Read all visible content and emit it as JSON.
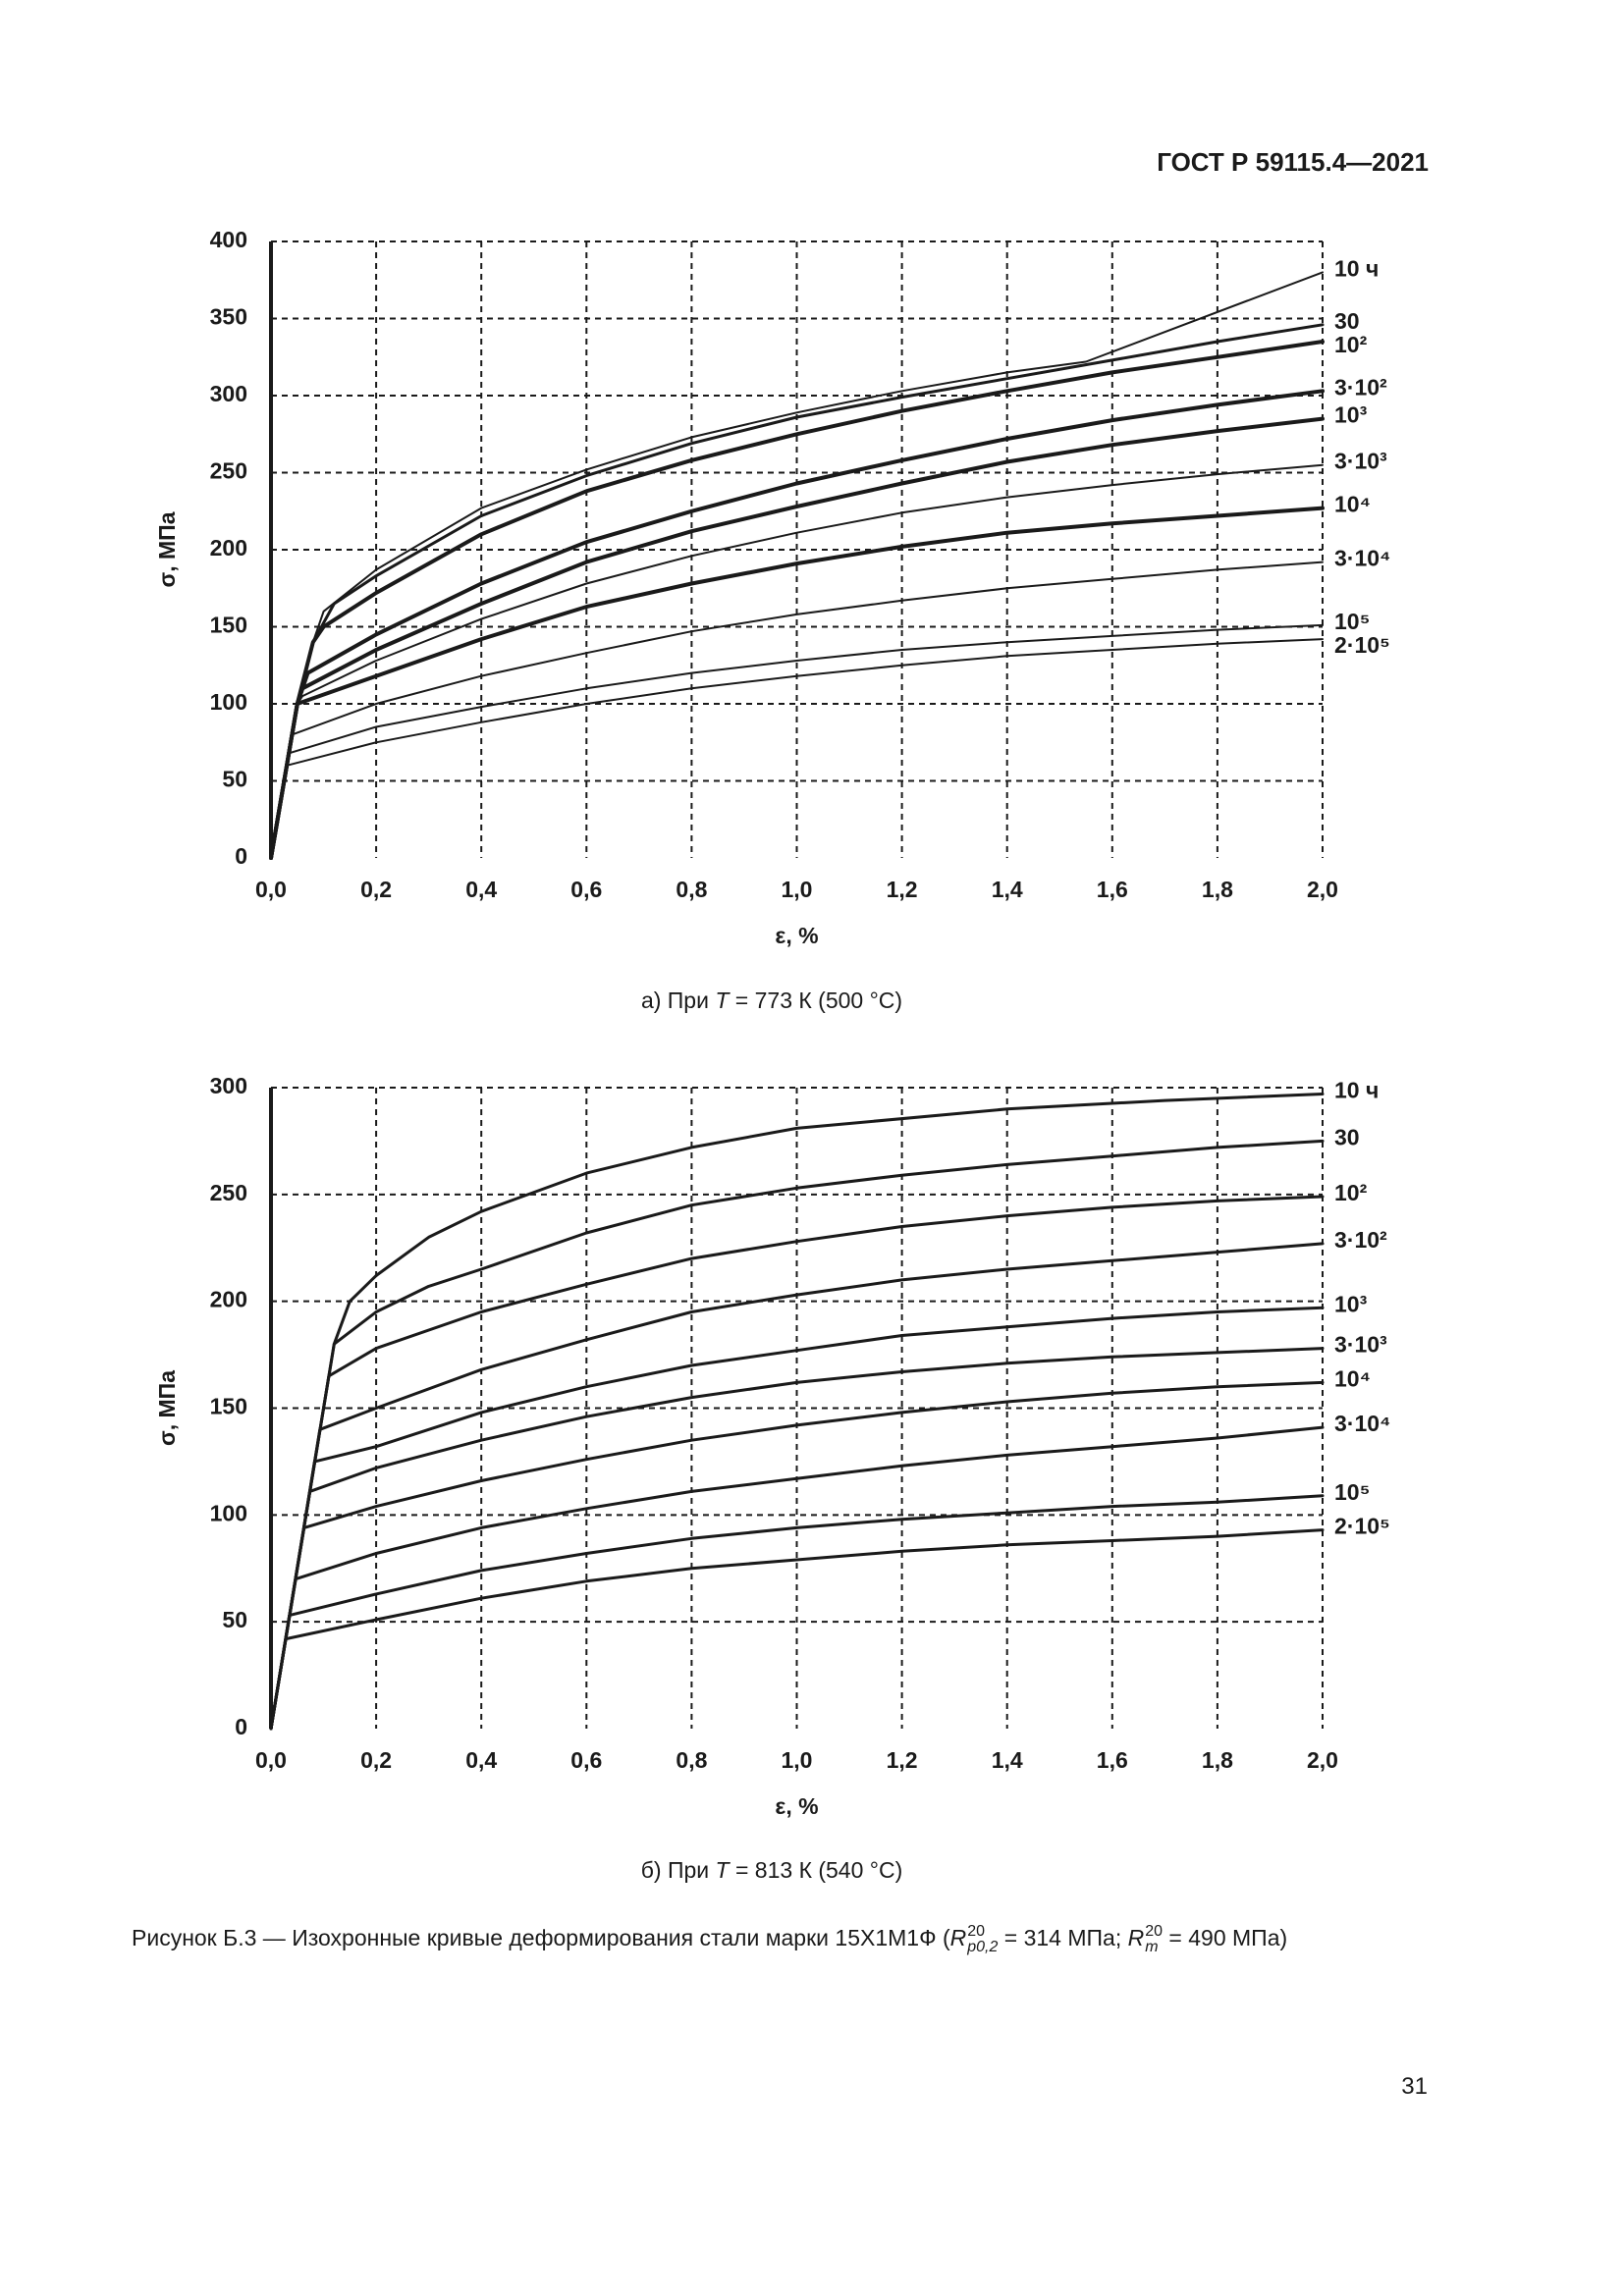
{
  "header": {
    "title": "ГОСТ Р 59115.4—2021"
  },
  "chart_data": [
    {
      "type": "line",
      "ylabel": "σ, МПа",
      "xlabel": "ε, %",
      "xlim": [
        0,
        2
      ],
      "ylim": [
        0,
        400
      ],
      "xticks": [
        {
          "value": 0,
          "label": "0,0"
        },
        {
          "value": 0.2,
          "label": "0,2"
        },
        {
          "value": 0.4,
          "label": "0,4"
        },
        {
          "value": 0.6,
          "label": "0,6"
        },
        {
          "value": 0.8,
          "label": "0,8"
        },
        {
          "value": 1,
          "label": "1,0"
        },
        {
          "value": 1.2,
          "label": "1,2"
        },
        {
          "value": 1.4,
          "label": "1,4"
        },
        {
          "value": 1.6,
          "label": "1,6"
        },
        {
          "value": 1.8,
          "label": "1,8"
        },
        {
          "value": 2,
          "label": "2,0"
        }
      ],
      "yticks": [
        0,
        50,
        100,
        150,
        200,
        250,
        300,
        350,
        400
      ],
      "grid": true,
      "series": [
        {
          "name": "10 ч",
          "color": "#1a1a1a",
          "linewidth": 2,
          "x": [
            0,
            0.05,
            0.08,
            0.1,
            0.2,
            0.4,
            0.6,
            0.8,
            1.0,
            1.2,
            1.4,
            1.55,
            2.0
          ],
          "values": [
            0,
            100,
            140,
            160,
            187,
            227,
            252,
            273,
            289,
            303,
            315,
            322,
            380
          ]
        },
        {
          "name": "30",
          "color": "#1a1a1a",
          "linewidth": 3,
          "x": [
            0,
            0.05,
            0.08,
            0.12,
            0.2,
            0.4,
            0.6,
            0.8,
            1.0,
            1.2,
            1.4,
            1.6,
            1.8,
            2.0
          ],
          "values": [
            0,
            100,
            140,
            165,
            183,
            222,
            248,
            269,
            286,
            299,
            311,
            323,
            335,
            346
          ]
        },
        {
          "name": "10²",
          "color": "#1a1a1a",
          "linewidth": 4,
          "x": [
            0,
            0.05,
            0.08,
            0.1,
            0.2,
            0.4,
            0.6,
            0.8,
            1.0,
            1.2,
            1.4,
            1.6,
            1.8,
            2.0
          ],
          "values": [
            0,
            100,
            140,
            150,
            172,
            210,
            238,
            258,
            275,
            290,
            303,
            315,
            325,
            335
          ]
        },
        {
          "name": "3·10²",
          "color": "#1a1a1a",
          "linewidth": 4,
          "x": [
            0,
            0.05,
            0.07,
            0.2,
            0.4,
            0.6,
            0.8,
            1.0,
            1.2,
            1.4,
            1.6,
            1.8,
            2.0
          ],
          "values": [
            0,
            100,
            120,
            145,
            178,
            205,
            225,
            243,
            258,
            272,
            284,
            294,
            303
          ]
        },
        {
          "name": "10³",
          "color": "#1a1a1a",
          "linewidth": 4,
          "x": [
            0,
            0.05,
            0.06,
            0.2,
            0.4,
            0.6,
            0.8,
            1.0,
            1.2,
            1.4,
            1.6,
            1.8,
            2.0
          ],
          "values": [
            0,
            100,
            110,
            135,
            165,
            192,
            212,
            228,
            243,
            257,
            268,
            277,
            285
          ]
        },
        {
          "name": "3·10³",
          "color": "#1a1a1a",
          "linewidth": 2,
          "x": [
            0,
            0.05,
            0.06,
            0.2,
            0.4,
            0.6,
            0.8,
            1.0,
            1.2,
            1.4,
            1.6,
            1.8,
            2.0
          ],
          "values": [
            0,
            100,
            105,
            128,
            155,
            178,
            196,
            211,
            224,
            234,
            242,
            249,
            255
          ]
        },
        {
          "name": "10⁴",
          "color": "#1a1a1a",
          "linewidth": 4,
          "x": [
            0,
            0.05,
            0.2,
            0.4,
            0.6,
            0.8,
            1.0,
            1.2,
            1.4,
            1.6,
            1.8,
            2.0
          ],
          "values": [
            0,
            100,
            118,
            142,
            163,
            178,
            191,
            202,
            211,
            217,
            222,
            227
          ]
        },
        {
          "name": "3·10⁴",
          "color": "#1a1a1a",
          "linewidth": 2,
          "x": [
            0,
            0.04,
            0.2,
            0.4,
            0.6,
            0.8,
            1.0,
            1.2,
            1.4,
            1.6,
            1.8,
            2.0
          ],
          "values": [
            0,
            80,
            100,
            118,
            133,
            147,
            158,
            167,
            175,
            181,
            187,
            192
          ]
        },
        {
          "name": "10⁵",
          "color": "#1a1a1a",
          "linewidth": 2,
          "x": [
            0,
            0.035,
            0.2,
            0.4,
            0.6,
            0.8,
            1.0,
            1.2,
            1.4,
            1.6,
            1.8,
            2.0
          ],
          "values": [
            0,
            68,
            85,
            98,
            110,
            120,
            128,
            135,
            140,
            144,
            148,
            151
          ]
        },
        {
          "name": "2·10⁵",
          "color": "#1a1a1a",
          "linewidth": 2,
          "x": [
            0,
            0.03,
            0.2,
            0.4,
            0.6,
            0.8,
            1.0,
            1.2,
            1.4,
            1.6,
            1.8,
            2.0
          ],
          "values": [
            0,
            60,
            75,
            88,
            100,
            110,
            118,
            125,
            131,
            135,
            139,
            142
          ]
        }
      ]
    },
    {
      "type": "line",
      "ylabel": "σ, МПа",
      "xlabel": "ε, %",
      "xlim": [
        0,
        2
      ],
      "ylim": [
        0,
        300
      ],
      "xticks": [
        {
          "value": 0,
          "label": "0,0"
        },
        {
          "value": 0.2,
          "label": "0,2"
        },
        {
          "value": 0.4,
          "label": "0,4"
        },
        {
          "value": 0.6,
          "label": "0,6"
        },
        {
          "value": 0.8,
          "label": "0,8"
        },
        {
          "value": 1,
          "label": "1,0"
        },
        {
          "value": 1.2,
          "label": "1,2"
        },
        {
          "value": 1.4,
          "label": "1,4"
        },
        {
          "value": 1.6,
          "label": "1,6"
        },
        {
          "value": 1.8,
          "label": "1,8"
        },
        {
          "value": 2,
          "label": "2,0"
        }
      ],
      "yticks": [
        0,
        50,
        100,
        150,
        200,
        250,
        300
      ],
      "grid": true,
      "series": [
        {
          "name": "10 ч",
          "color": "#1a1a1a",
          "linewidth": 3,
          "x": [
            0,
            0.12,
            0.15,
            0.2,
            0.3,
            0.4,
            0.6,
            0.8,
            1.0,
            1.4,
            1.7,
            2.0
          ],
          "values": [
            0,
            180,
            200,
            212,
            230,
            242,
            260,
            272,
            281,
            290,
            294,
            297
          ]
        },
        {
          "name": "30",
          "color": "#1a1a1a",
          "linewidth": 3,
          "x": [
            0,
            0.12,
            0.2,
            0.3,
            0.4,
            0.6,
            0.8,
            1.0,
            1.2,
            1.4,
            1.6,
            1.8,
            2.0
          ],
          "values": [
            0,
            180,
            195,
            207,
            215,
            232,
            245,
            253,
            259,
            264,
            268,
            272,
            275
          ]
        },
        {
          "name": "10²",
          "color": "#1a1a1a",
          "linewidth": 3,
          "x": [
            0,
            0.11,
            0.2,
            0.4,
            0.6,
            0.8,
            1.0,
            1.2,
            1.4,
            1.6,
            1.8,
            2.0
          ],
          "values": [
            0,
            165,
            178,
            195,
            208,
            220,
            228,
            235,
            240,
            244,
            247,
            249
          ]
        },
        {
          "name": "3·10²",
          "color": "#1a1a1a",
          "linewidth": 3,
          "x": [
            0,
            0.093,
            0.2,
            0.4,
            0.6,
            0.8,
            1.0,
            1.2,
            1.4,
            1.6,
            1.8,
            2.0
          ],
          "values": [
            0,
            140,
            150,
            168,
            182,
            195,
            203,
            210,
            215,
            219,
            223,
            227
          ]
        },
        {
          "name": "10³",
          "color": "#1a1a1a",
          "linewidth": 3,
          "x": [
            0,
            0.083,
            0.2,
            0.4,
            0.6,
            0.8,
            1.0,
            1.2,
            1.4,
            1.6,
            1.8,
            2.0
          ],
          "values": [
            0,
            125,
            132,
            148,
            160,
            170,
            177,
            184,
            188,
            192,
            195,
            197
          ]
        },
        {
          "name": "3·10³",
          "color": "#1a1a1a",
          "linewidth": 3,
          "x": [
            0,
            0.074,
            0.2,
            0.4,
            0.6,
            0.8,
            1.0,
            1.2,
            1.4,
            1.6,
            1.8,
            2.0
          ],
          "values": [
            0,
            111,
            122,
            135,
            146,
            155,
            162,
            167,
            171,
            174,
            176,
            178
          ]
        },
        {
          "name": "10⁴",
          "color": "#1a1a1a",
          "linewidth": 3,
          "x": [
            0,
            0.063,
            0.2,
            0.4,
            0.6,
            0.8,
            1.0,
            1.2,
            1.4,
            1.6,
            1.8,
            2.0
          ],
          "values": [
            0,
            94,
            104,
            116,
            126,
            135,
            142,
            148,
            153,
            157,
            160,
            162
          ]
        },
        {
          "name": "3·10⁴",
          "color": "#1a1a1a",
          "linewidth": 3,
          "x": [
            0,
            0.047,
            0.2,
            0.4,
            0.6,
            0.8,
            1.0,
            1.2,
            1.4,
            1.6,
            1.8,
            2.0
          ],
          "values": [
            0,
            70,
            82,
            94,
            103,
            111,
            117,
            123,
            128,
            132,
            136,
            141
          ]
        },
        {
          "name": "10⁵",
          "color": "#1a1a1a",
          "linewidth": 3,
          "x": [
            0,
            0.035,
            0.2,
            0.4,
            0.6,
            0.8,
            1.0,
            1.2,
            1.4,
            1.6,
            1.8,
            2.0
          ],
          "values": [
            0,
            53,
            63,
            74,
            82,
            89,
            94,
            98,
            101,
            104,
            106,
            109
          ]
        },
        {
          "name": "2·10⁵",
          "color": "#1a1a1a",
          "linewidth": 3,
          "x": [
            0,
            0.028,
            0.2,
            0.4,
            0.6,
            0.8,
            1.0,
            1.2,
            1.4,
            1.6,
            1.8,
            2.0
          ],
          "values": [
            0,
            42,
            51,
            61,
            69,
            75,
            79,
            83,
            86,
            88,
            90,
            93
          ]
        }
      ]
    }
  ],
  "captions": [
    {
      "before": "а) При ",
      "symbol": "T",
      "after": " = 773 К (500 °C)"
    },
    {
      "before": "б) При ",
      "symbol": "T",
      "after": " = 813 К (540 °C)"
    }
  ],
  "figure_caption": {
    "prefix": "Рисунок Б.3 — Изохронные кривые деформирования стали марки 15Х1М1Ф (",
    "symbol1": "R",
    "sub1": "p0,2",
    "sup1": "20",
    "middle": " = 314 МПа; ",
    "symbol2": "R",
    "sub2": "m",
    "sup2": "20",
    "suffix": " = 490 МПа)"
  },
  "page_number": "31"
}
